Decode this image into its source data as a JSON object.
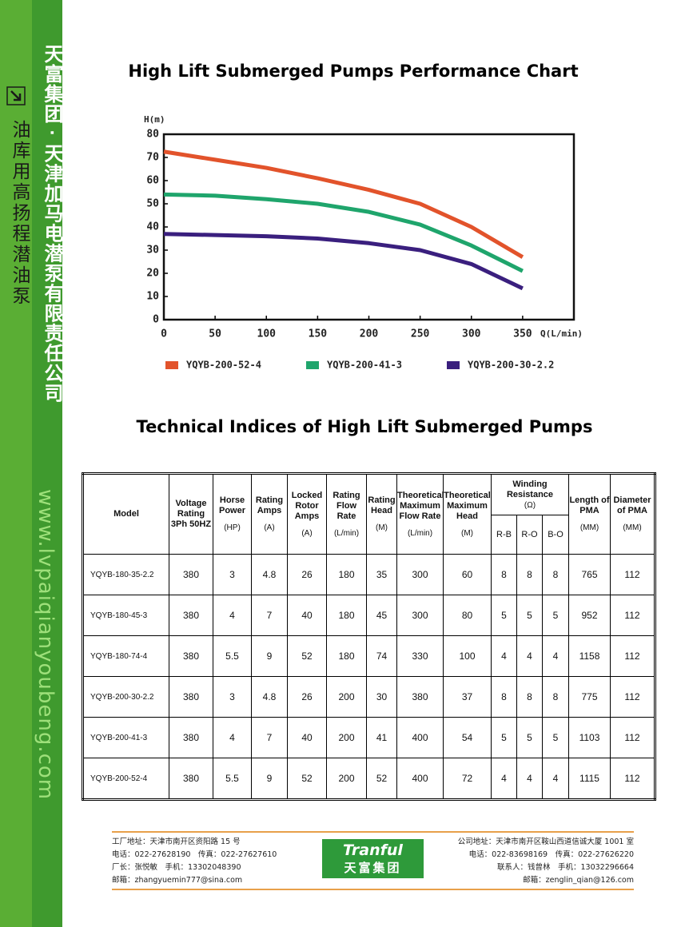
{
  "sidebar": {
    "vertical_title": "天富集团 · 天津加马电潜泵有限责任公司",
    "product": "油库用高扬程潜油泵",
    "website": "www.lvpaiqianyoubeng.com"
  },
  "chart_data": {
    "type": "line",
    "title": "High Lift Submerged Pumps Performance Chart",
    "y_label": "H(m)",
    "x_label": "Q(L/min)",
    "x": [
      0,
      50,
      100,
      150,
      200,
      250,
      300,
      350
    ],
    "xlim": [
      0,
      400
    ],
    "xticks": [
      0,
      50,
      100,
      150,
      200,
      250,
      300,
      350
    ],
    "ylim": [
      0,
      80
    ],
    "yticks": [
      0,
      10,
      20,
      30,
      40,
      50,
      60,
      70,
      80
    ],
    "grid": false,
    "legend": "bottom",
    "series": [
      {
        "name": "YQYB-200-52-4",
        "color": "#e2532b",
        "values": [
          72.5,
          69,
          65.5,
          61,
          56,
          50,
          40,
          27
        ]
      },
      {
        "name": "YQYB-200-41-3",
        "color": "#1fa56c",
        "values": [
          54,
          53.5,
          52,
          50,
          46.5,
          41,
          32,
          21
        ]
      },
      {
        "name": "YQYB-200-30-2.2",
        "color": "#3a1f7e",
        "values": [
          37,
          36.5,
          36,
          35,
          33,
          30,
          24,
          13.5
        ]
      }
    ]
  },
  "table": {
    "title": "Technical Indices of High Lift Submerged Pumps",
    "columns": [
      {
        "name": "Model"
      },
      {
        "name": "Voltage Rating 3Ph 50HZ"
      },
      {
        "name": "Horse Power",
        "unit": "(HP)"
      },
      {
        "name": "Rating Amps",
        "unit": "(A)"
      },
      {
        "name": "Locked Rotor Amps",
        "unit": "(A)"
      },
      {
        "name": "Rating Flow Rate",
        "unit": "(L/min)"
      },
      {
        "name": "Rating Head",
        "unit": "(M)"
      },
      {
        "name": "Theoretical Maximum Flow Rate",
        "unit": "(L/min)"
      },
      {
        "name": "Theoretical Maximum Head",
        "unit": "(M)"
      },
      {
        "name": "Winding Resistance",
        "unit": "(Ω)",
        "sub": [
          "R-B",
          "R-O",
          "B-O"
        ]
      },
      {
        "name": "Length of PMA",
        "unit": "(MM)"
      },
      {
        "name": "Diameter of PMA",
        "unit": "(MM)"
      }
    ],
    "rows": [
      [
        "YQYB-180-35-2.2",
        "380",
        "3",
        "4.8",
        "26",
        "180",
        "35",
        "300",
        "60",
        "8",
        "8",
        "8",
        "765",
        "112"
      ],
      [
        "YQYB-180-45-3",
        "380",
        "4",
        "7",
        "40",
        "180",
        "45",
        "300",
        "80",
        "5",
        "5",
        "5",
        "952",
        "112"
      ],
      [
        "YQYB-180-74-4",
        "380",
        "5.5",
        "9",
        "52",
        "180",
        "74",
        "330",
        "100",
        "4",
        "4",
        "4",
        "1158",
        "112"
      ],
      [
        "YQYB-200-30-2.2",
        "380",
        "3",
        "4.8",
        "26",
        "200",
        "30",
        "380",
        "37",
        "8",
        "8",
        "8",
        "775",
        "112"
      ],
      [
        "YQYB-200-41-3",
        "380",
        "4",
        "7",
        "40",
        "200",
        "41",
        "400",
        "54",
        "5",
        "5",
        "5",
        "1103",
        "112"
      ],
      [
        "YQYB-200-52-4",
        "380",
        "5.5",
        "9",
        "52",
        "200",
        "52",
        "400",
        "72",
        "4",
        "4",
        "4",
        "1115",
        "112"
      ]
    ]
  },
  "footer": {
    "left": [
      "工厂地址：天津市南开区资阳路 15 号",
      "电话：022-27628190　传真：022-27627610",
      "厂长：张悦敏　手机：13302048390",
      "邮箱：zhangyuemin777@sina.com"
    ],
    "logo": {
      "brand": "Tranful",
      "name": "天富集团"
    },
    "right": [
      "公司地址：天津市南开区鞍山西道信诚大厦 1001 室",
      "电话：022-83698169　传真：022-27626220",
      "联系人：钱曾林　手机：13032296664",
      "邮箱：zenglin_qian@126.com"
    ]
  }
}
